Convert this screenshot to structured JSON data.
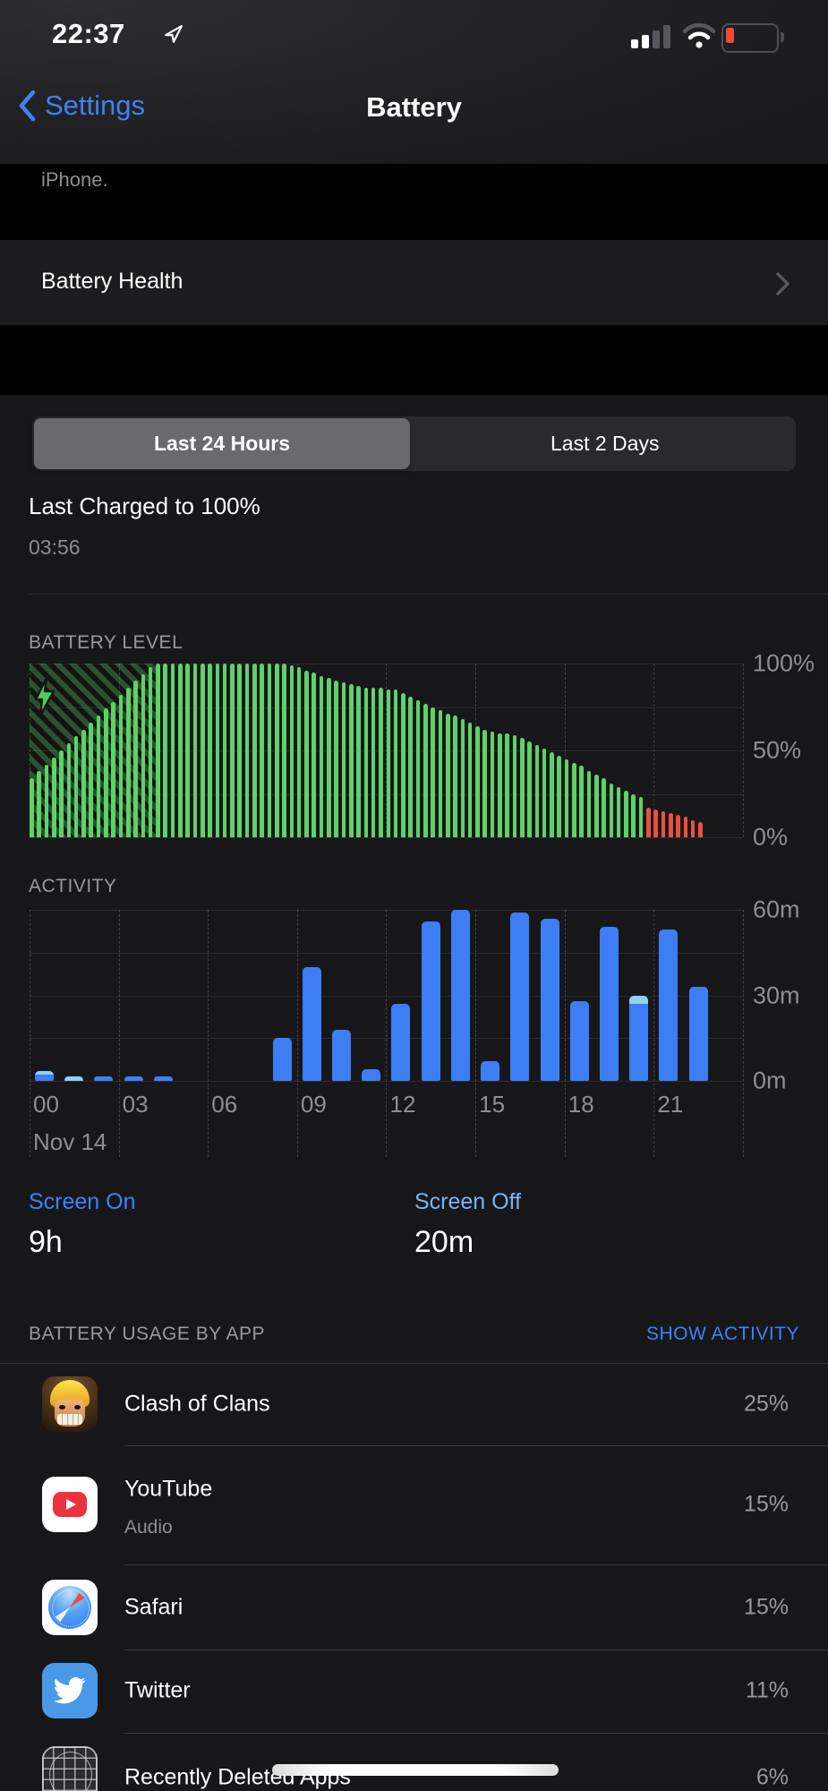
{
  "statusbar": {
    "time": "22:37"
  },
  "nav": {
    "back_label": "Settings",
    "title": "Battery"
  },
  "intro_note": "iPhone.",
  "battery_health": {
    "label": "Battery Health"
  },
  "segmented": {
    "options": [
      {
        "label": "Last 24 Hours",
        "selected": true
      },
      {
        "label": "Last 2 Days",
        "selected": false
      }
    ]
  },
  "last_charged": {
    "title": "Last Charged to 100%",
    "time": "03:56"
  },
  "chart_data": [
    {
      "type": "bar",
      "title": "BATTERY LEVEL",
      "ylabel": "battery percent",
      "y_ticks": [
        "100%",
        "50%",
        "0%"
      ],
      "y_max": 100,
      "x_range_hours": [
        0,
        24
      ],
      "interval_minutes": 15,
      "values": [
        34,
        38,
        42,
        46,
        50,
        54,
        58,
        62,
        66,
        70,
        74,
        78,
        82,
        86,
        90,
        94,
        98,
        100,
        100,
        100,
        100,
        100,
        100,
        100,
        100,
        100,
        100,
        100,
        100,
        100,
        100,
        100,
        100,
        100,
        100,
        99,
        98,
        96,
        95,
        93,
        92,
        90,
        89,
        88,
        87,
        86,
        86,
        86,
        85,
        85,
        83,
        81,
        79,
        77,
        75,
        73,
        71,
        70,
        68,
        66,
        64,
        62,
        61,
        60,
        60,
        59,
        57,
        55,
        53,
        51,
        49,
        47,
        45,
        43,
        41,
        38,
        36,
        34,
        31,
        29,
        27,
        25,
        23,
        17,
        16,
        15,
        14,
        13,
        12,
        10,
        9
      ],
      "red_from_index": 83,
      "charging_hatch_until_hour": 4.3,
      "charging_icon": "bolt",
      "grid": "on",
      "colors": {
        "normal": "#60d169",
        "low": "#e9503e",
        "charging_hatch": "#2b5132"
      }
    },
    {
      "type": "bar",
      "title": "ACTIVITY",
      "ylabel": "minutes of use per hour",
      "y_ticks": [
        "60m",
        "30m",
        "0m"
      ],
      "y_max": 60,
      "x_tick_hours": [
        0,
        3,
        6,
        9,
        12,
        15,
        18,
        21
      ],
      "x_tick_labels": [
        "00",
        "03",
        "06",
        "09",
        "12",
        "15",
        "18",
        "21"
      ],
      "date_label": "Nov 14",
      "hours": [
        0,
        1,
        2,
        3,
        4,
        5,
        6,
        7,
        8,
        9,
        10,
        11,
        12,
        13,
        14,
        15,
        16,
        17,
        18,
        19,
        20,
        21,
        22
      ],
      "values": [
        3.5,
        1.5,
        1.5,
        1.5,
        1.5,
        0,
        0,
        0,
        15,
        40,
        18,
        4,
        27,
        56,
        60,
        7,
        59,
        57,
        28,
        54,
        30,
        53,
        33
      ],
      "audio_top_minutes": [
        1.2,
        1.5,
        0,
        0,
        0,
        0,
        0,
        0,
        0,
        0,
        0,
        0,
        0,
        0,
        0,
        0,
        0,
        0,
        0,
        0,
        3,
        0,
        0
      ],
      "grid": "on",
      "colors": {
        "screen": "#3d7ef5",
        "audio": "#8ed2f4"
      }
    }
  ],
  "screen_stats": {
    "on_label": "Screen On",
    "on_value": "9h",
    "off_label": "Screen Off",
    "off_value": "20m"
  },
  "usage": {
    "header": "BATTERY USAGE BY APP",
    "action": "SHOW ACTIVITY",
    "rows": [
      {
        "app": "Clash of Clans",
        "note": "",
        "pct": "25%",
        "icon": "clash-of-clans-icon"
      },
      {
        "app": "YouTube",
        "note": "Audio",
        "pct": "15%",
        "icon": "youtube-icon"
      },
      {
        "app": "Safari",
        "note": "",
        "pct": "15%",
        "icon": "safari-icon"
      },
      {
        "app": "Twitter",
        "note": "",
        "pct": "11%",
        "icon": "twitter-icon"
      },
      {
        "app": "Recently Deleted Apps",
        "note": "",
        "pct": "6%",
        "icon": "recently-deleted-icon"
      }
    ]
  },
  "colors": {
    "accent_blue": "#3d82f7",
    "light_blue": "#74b6f8",
    "green": "#60d169",
    "red": "#e9503e",
    "gray_text": "#8e8e93"
  }
}
